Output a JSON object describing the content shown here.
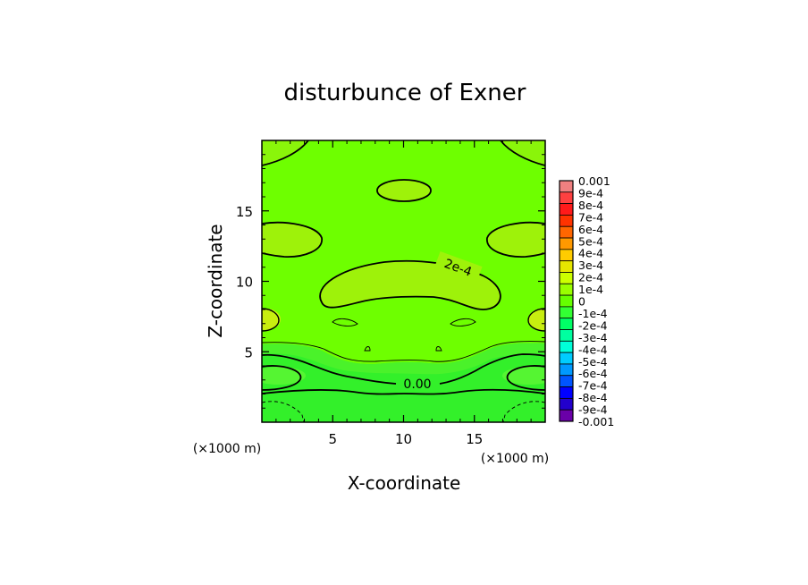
{
  "chart_data": {
    "type": "heatmap",
    "title": "disturbunce of Exner",
    "xlabel": "X-coordinate",
    "ylabel": "Z-coordinate",
    "xlim": [
      0,
      20
    ],
    "ylim": [
      0,
      20
    ],
    "x_ticks": [
      5,
      10,
      15
    ],
    "y_ticks": [
      5,
      10,
      15
    ],
    "x_tick_labels": [
      "5",
      "10",
      "15"
    ],
    "y_tick_labels": [
      "5",
      "10",
      "15"
    ],
    "x_unit_left": "(×1000 m)",
    "x_unit_right": "(×1000 m)",
    "colorbar": {
      "range": [
        -0.001,
        0.001
      ],
      "labels": [
        "0.001",
        "9e-4",
        "8e-4",
        "7e-4",
        "6e-4",
        "5e-4",
        "4e-4",
        "3e-4",
        "2e-4",
        "1e-4",
        "0",
        "-1e-4",
        "-2e-4",
        "-3e-4",
        "-4e-4",
        "-5e-4",
        "-6e-4",
        "-7e-4",
        "-8e-4",
        "-9e-4",
        "-0.001"
      ],
      "colors": [
        "#f08080",
        "#ff4040",
        "#ff1a1a",
        "#ff3300",
        "#ff6600",
        "#ff9900",
        "#ffcc00",
        "#e6e600",
        "#ccff00",
        "#99ff00",
        "#66ff00",
        "#33ff33",
        "#00ff66",
        "#00ffa0",
        "#00ffd9",
        "#00ccff",
        "#0099ff",
        "#0055ff",
        "#0000ff",
        "#2200cc",
        "#6a00a8"
      ]
    },
    "contour_labels": [
      "2e-4",
      "0.00"
    ],
    "contour_levels": [
      0.0002,
      0.0001,
      0,
      -0.0001
    ]
  }
}
